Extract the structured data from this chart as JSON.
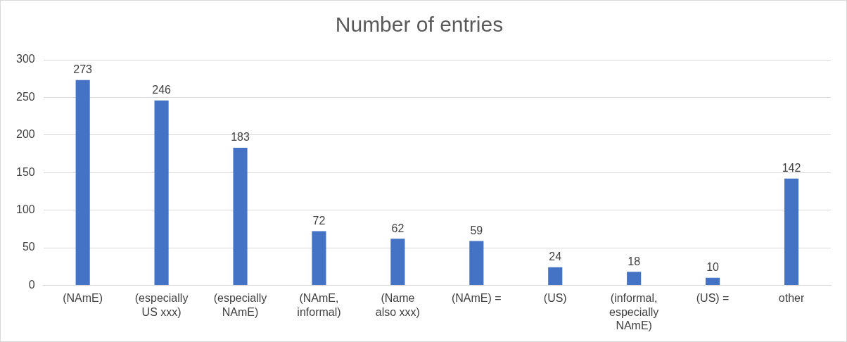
{
  "chart_data": {
    "type": "bar",
    "title": "Number of entries",
    "categories": [
      "(NAmE)",
      "(especially US xxx)",
      "(especially NAmE)",
      "(NAmE, informal)",
      "(Name also xxx)",
      "(NAmE) =",
      "(US)",
      "(informal, especially NAmE)",
      "(US) =",
      "other"
    ],
    "values": [
      273,
      246,
      183,
      72,
      62,
      59,
      24,
      18,
      10,
      142
    ],
    "color": "#4472c4",
    "ylim": [
      0,
      300
    ],
    "yticks": [
      0,
      50,
      100,
      150,
      200,
      250,
      300
    ],
    "grid": "y",
    "data_labels": true,
    "legend": false
  }
}
